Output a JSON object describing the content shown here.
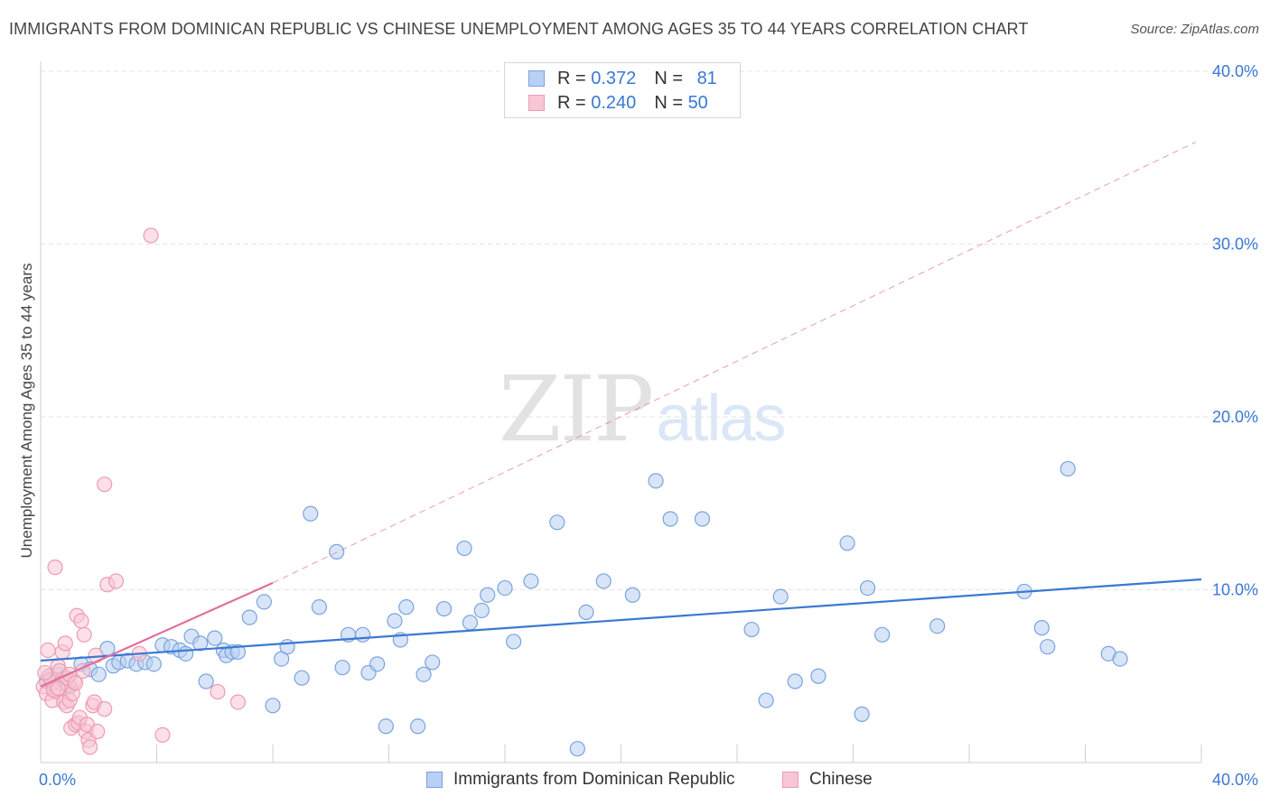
{
  "title": "IMMIGRANTS FROM DOMINICAN REPUBLIC VS CHINESE UNEMPLOYMENT AMONG AGES 35 TO 44 YEARS CORRELATION CHART",
  "source": "Source: ZipAtlas.com",
  "watermark": {
    "zip": "ZIP",
    "atlas": "atlas"
  },
  "colors": {
    "blue_fill": "#b8d0f3",
    "blue_stroke": "#7aa3df",
    "blue_line": "#3a78d4",
    "pink_fill": "#f8c6d4",
    "pink_stroke": "#ee9ab3",
    "pink_line": "#e0709a",
    "grid": "#e3e3e3",
    "tick_label": "#3a78d4"
  },
  "legend": {
    "rows": [
      {
        "r_label": "R =",
        "r_value": "0.372",
        "n_label": "N =",
        "n_value": "81"
      },
      {
        "r_label": "R =",
        "r_value": "0.240",
        "n_label": "N =",
        "n_value": "50"
      }
    ]
  },
  "bottom_legend": {
    "series1": "Immigrants from Dominican Republic",
    "series2": "Chinese"
  },
  "chart_data": {
    "type": "scatter",
    "title": "IMMIGRANTS FROM DOMINICAN REPUBLIC VS CHINESE UNEMPLOYMENT AMONG AGES 35 TO 44 YEARS CORRELATION CHART",
    "xlabel": "",
    "ylabel": "Unemployment Among Ages 35 to 44 years",
    "xlim": [
      0,
      40
    ],
    "ylim": [
      0,
      40
    ],
    "x_tick_labels": [
      "0.0%",
      "40.0%"
    ],
    "y_ticks": [
      10,
      20,
      30,
      40
    ],
    "y_tick_labels": [
      "10.0%",
      "20.0%",
      "30.0%",
      "40.0%"
    ],
    "grid": true,
    "legend_position": "top-center",
    "series": [
      {
        "name": "Immigrants from Dominican Republic",
        "color": "#b8d0f3",
        "R": 0.372,
        "N": 81,
        "trend": {
          "x": [
            0,
            40
          ],
          "y": [
            5.9,
            10.6
          ],
          "style": "solid"
        },
        "points": [
          [
            0.2,
            4.7
          ],
          [
            0.3,
            5.0
          ],
          [
            0.4,
            4.6
          ],
          [
            0.6,
            5.1
          ],
          [
            0.8,
            4.9
          ],
          [
            1.0,
            4.4
          ],
          [
            1.4,
            5.7
          ],
          [
            1.7,
            5.4
          ],
          [
            2.0,
            5.1
          ],
          [
            2.3,
            6.6
          ],
          [
            2.5,
            5.6
          ],
          [
            2.7,
            5.8
          ],
          [
            3.0,
            5.9
          ],
          [
            3.3,
            5.7
          ],
          [
            3.6,
            5.8
          ],
          [
            3.9,
            5.7
          ],
          [
            4.2,
            6.8
          ],
          [
            4.5,
            6.7
          ],
          [
            4.8,
            6.5
          ],
          [
            5.0,
            6.3
          ],
          [
            5.2,
            7.3
          ],
          [
            5.5,
            6.9
          ],
          [
            5.7,
            4.7
          ],
          [
            6.0,
            7.2
          ],
          [
            6.3,
            6.5
          ],
          [
            6.4,
            6.2
          ],
          [
            6.6,
            6.4
          ],
          [
            6.8,
            6.4
          ],
          [
            7.2,
            8.4
          ],
          [
            7.7,
            9.3
          ],
          [
            8.0,
            3.3
          ],
          [
            8.3,
            6.0
          ],
          [
            8.5,
            6.7
          ],
          [
            9.0,
            4.9
          ],
          [
            9.3,
            14.4
          ],
          [
            9.6,
            9.0
          ],
          [
            10.2,
            12.2
          ],
          [
            10.4,
            5.5
          ],
          [
            10.6,
            7.4
          ],
          [
            11.1,
            7.4
          ],
          [
            11.3,
            5.2
          ],
          [
            11.6,
            5.7
          ],
          [
            11.9,
            2.1
          ],
          [
            12.2,
            8.2
          ],
          [
            12.4,
            7.1
          ],
          [
            12.6,
            9.0
          ],
          [
            13.0,
            2.1
          ],
          [
            13.2,
            5.1
          ],
          [
            13.5,
            5.8
          ],
          [
            13.9,
            8.9
          ],
          [
            14.6,
            12.4
          ],
          [
            14.8,
            8.1
          ],
          [
            15.2,
            8.8
          ],
          [
            15.4,
            9.7
          ],
          [
            16.0,
            10.1
          ],
          [
            16.3,
            7.0
          ],
          [
            16.9,
            10.5
          ],
          [
            17.8,
            13.9
          ],
          [
            18.5,
            0.8
          ],
          [
            18.8,
            8.7
          ],
          [
            19.4,
            10.5
          ],
          [
            20.4,
            9.7
          ],
          [
            21.2,
            16.3
          ],
          [
            21.7,
            14.1
          ],
          [
            22.8,
            14.1
          ],
          [
            24.5,
            7.7
          ],
          [
            25.0,
            3.6
          ],
          [
            25.5,
            9.6
          ],
          [
            26.0,
            4.7
          ],
          [
            26.8,
            5.0
          ],
          [
            27.8,
            12.7
          ],
          [
            28.3,
            2.8
          ],
          [
            28.5,
            10.1
          ],
          [
            29.0,
            7.4
          ],
          [
            30.9,
            7.9
          ],
          [
            33.9,
            9.9
          ],
          [
            34.5,
            7.8
          ],
          [
            34.7,
            6.7
          ],
          [
            35.4,
            17.0
          ],
          [
            36.8,
            6.3
          ],
          [
            37.2,
            6.0
          ]
        ]
      },
      {
        "name": "Chinese",
        "color": "#f8c6d4",
        "R": 0.24,
        "N": 50,
        "trend": {
          "x": [
            0,
            8.0
          ],
          "y": [
            4.4,
            10.4
          ],
          "style": "solid",
          "extended": {
            "x": [
              8.0,
              39.8
            ],
            "y": [
              10.4,
              35.9
            ],
            "style": "dashed"
          }
        },
        "points": [
          [
            0.1,
            4.4
          ],
          [
            0.2,
            4.0
          ],
          [
            0.25,
            6.5
          ],
          [
            0.3,
            5.0
          ],
          [
            0.35,
            4.8
          ],
          [
            0.4,
            3.6
          ],
          [
            0.5,
            11.3
          ],
          [
            0.55,
            4.1
          ],
          [
            0.6,
            5.6
          ],
          [
            0.65,
            5.3
          ],
          [
            0.7,
            4.6
          ],
          [
            0.75,
            6.4
          ],
          [
            0.8,
            3.5
          ],
          [
            0.85,
            6.9
          ],
          [
            0.9,
            3.3
          ],
          [
            0.95,
            4.5
          ],
          [
            1.0,
            3.6
          ],
          [
            1.05,
            2.0
          ],
          [
            1.1,
            4.0
          ],
          [
            1.15,
            4.7
          ],
          [
            1.2,
            2.2
          ],
          [
            1.25,
            8.5
          ],
          [
            1.3,
            2.3
          ],
          [
            1.35,
            2.6
          ],
          [
            1.4,
            8.2
          ],
          [
            1.45,
            5.3
          ],
          [
            1.5,
            7.4
          ],
          [
            1.55,
            1.8
          ],
          [
            1.6,
            2.2
          ],
          [
            1.65,
            1.3
          ],
          [
            1.7,
            0.9
          ],
          [
            1.8,
            3.3
          ],
          [
            1.85,
            3.5
          ],
          [
            1.9,
            6.2
          ],
          [
            1.95,
            1.8
          ],
          [
            2.2,
            3.1
          ],
          [
            2.2,
            16.1
          ],
          [
            2.3,
            10.3
          ],
          [
            2.6,
            10.5
          ],
          [
            3.4,
            6.3
          ],
          [
            3.8,
            30.5
          ],
          [
            4.2,
            1.6
          ],
          [
            6.1,
            4.1
          ],
          [
            6.8,
            3.5
          ],
          [
            0.15,
            5.2
          ],
          [
            0.45,
            4.2
          ],
          [
            0.9,
            4.9
          ],
          [
            1.0,
            5.1
          ],
          [
            0.6,
            4.3
          ],
          [
            1.2,
            4.6
          ]
        ]
      }
    ]
  }
}
